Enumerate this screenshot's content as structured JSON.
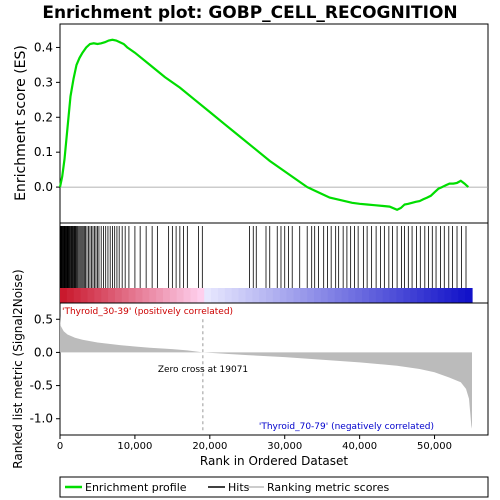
{
  "chart_data": [
    {
      "type": "line",
      "title": "Enrichment plot: GOBP_CELL_RECOGNITION",
      "ylabel": "Enrichment score (ES)",
      "xlim": [
        0,
        55000
      ],
      "ylim": [
        -0.1,
        0.45
      ],
      "yticks": [
        0.0,
        0.1,
        0.2,
        0.3,
        0.4
      ],
      "ytick_labels": [
        "0.0",
        "0.1",
        "0.2",
        "0.3",
        "0.4"
      ],
      "grid": false,
      "series": [
        {
          "name": "Enrichment profile",
          "color": "#00dd00",
          "x": [
            0,
            300,
            600,
            1000,
            1400,
            1800,
            2200,
            2600,
            3000,
            3500,
            4000,
            4500,
            5000,
            5500,
            6000,
            6500,
            7000,
            7500,
            8000,
            8500,
            9000,
            10000,
            12000,
            14000,
            16000,
            18000,
            20000,
            22000,
            24000,
            26000,
            28000,
            30000,
            32000,
            33000,
            34000,
            35000,
            36000,
            37000,
            38000,
            39000,
            40000,
            41000,
            42000,
            43000,
            44000,
            45000,
            45500,
            46000,
            46500,
            47000,
            47500,
            48000,
            48500,
            49000,
            49500,
            50000,
            50500,
            51000,
            51500,
            52000,
            52500,
            53000,
            53500,
            54000,
            54500
          ],
          "y": [
            0.0,
            0.03,
            0.08,
            0.17,
            0.26,
            0.31,
            0.35,
            0.37,
            0.385,
            0.4,
            0.41,
            0.412,
            0.41,
            0.412,
            0.415,
            0.42,
            0.422,
            0.42,
            0.415,
            0.41,
            0.4,
            0.385,
            0.35,
            0.315,
            0.285,
            0.25,
            0.215,
            0.18,
            0.145,
            0.11,
            0.075,
            0.045,
            0.015,
            0.0,
            -0.01,
            -0.02,
            -0.03,
            -0.035,
            -0.04,
            -0.045,
            -0.048,
            -0.05,
            -0.052,
            -0.054,
            -0.056,
            -0.065,
            -0.06,
            -0.05,
            -0.048,
            -0.045,
            -0.042,
            -0.04,
            -0.035,
            -0.03,
            -0.025,
            -0.015,
            -0.005,
            0.0,
            0.005,
            0.01,
            0.01,
            0.012,
            0.018,
            0.01,
            0.0
          ]
        }
      ]
    },
    {
      "type": "heatmap",
      "legend": [
        "Hits"
      ],
      "hit_positions": [
        80,
        160,
        240,
        320,
        400,
        480,
        560,
        640,
        720,
        800,
        880,
        960,
        1040,
        1120,
        1200,
        1300,
        1400,
        1500,
        1600,
        1700,
        1800,
        1900,
        2000,
        2100,
        2200,
        2350,
        2500,
        2650,
        2800,
        2950,
        3100,
        3250,
        3400,
        3600,
        3800,
        4000,
        4200,
        4400,
        4600,
        4800,
        5000,
        5200,
        5500,
        5800,
        6100,
        6400,
        6700,
        7000,
        7300,
        7600,
        7900,
        8300,
        8700,
        9200,
        10000,
        10700,
        11500,
        12300,
        13000,
        14500,
        15000,
        15500,
        16000,
        16500,
        17000,
        18500,
        19000,
        25300,
        25800,
        26200,
        27500,
        28000,
        29000,
        29500,
        30000,
        30500,
        31000,
        32000,
        33000,
        33600,
        34000,
        34500,
        35200,
        35700,
        36200,
        36800,
        37200,
        37800,
        38300,
        38800,
        39300,
        39800,
        40500,
        41000,
        41600,
        42200,
        42800,
        43300,
        43900,
        44400,
        45000,
        45600,
        46000,
        46500,
        47000,
        47600,
        48100,
        48700,
        49200,
        49700,
        50200,
        50800,
        51300,
        51900,
        52400,
        53000,
        53600,
        54200
      ],
      "band_labels": [
        "'Thyroid_30-39' (positively correlated)",
        "'Thyroid_70-79' (negatively correlated)"
      ]
    },
    {
      "type": "area",
      "xlabel": "Rank in Ordered Dataset",
      "ylabel": "Ranked list metric (Signal2Noise)",
      "xlim": [
        0,
        55000
      ],
      "ylim": [
        -1.2,
        0.7
      ],
      "xticks": [
        0,
        10000,
        20000,
        30000,
        40000,
        50000
      ],
      "xtick_labels": [
        "0",
        "10,000",
        "20,000",
        "30,000",
        "40,000",
        "50,000"
      ],
      "yticks": [
        0.5,
        0.0,
        -0.5,
        -1.0
      ],
      "ytick_labels": [
        "0.5",
        "0.0",
        "-0.5",
        "-1.0"
      ],
      "annotation": "Zero cross at 19071",
      "zero_cross": 19071,
      "series": [
        {
          "name": "Ranking metric scores",
          "color": "#bbbbbb",
          "x": [
            0,
            100,
            500,
            1000,
            2000,
            3000,
            5000,
            8000,
            10000,
            12000,
            15000,
            17000,
            19071,
            22000,
            25000,
            30000,
            35000,
            40000,
            45000,
            48000,
            50000,
            52000,
            53500,
            54200,
            54600,
            54900,
            55000
          ],
          "y": [
            0.55,
            0.4,
            0.32,
            0.27,
            0.22,
            0.19,
            0.15,
            0.11,
            0.09,
            0.07,
            0.05,
            0.03,
            0.0,
            -0.02,
            -0.04,
            -0.07,
            -0.11,
            -0.15,
            -0.2,
            -0.25,
            -0.3,
            -0.38,
            -0.45,
            -0.55,
            -0.7,
            -1.1,
            -1.15
          ]
        }
      ]
    }
  ],
  "legend": {
    "items": [
      {
        "label": "Enrichment profile",
        "color": "#00dd00"
      },
      {
        "label": "Hits",
        "color": "#000000"
      },
      {
        "label": "Ranking metric scores",
        "color": "#bbbbbb"
      }
    ]
  }
}
